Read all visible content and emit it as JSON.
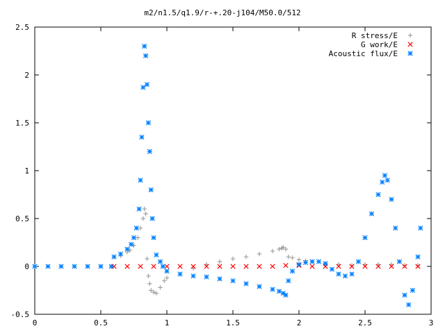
{
  "chart_data": {
    "type": "scatter",
    "title": "m2/n1.5/q1.9/r-+.20-j104/M50.0/512",
    "xlabel": "",
    "ylabel": "",
    "xlim": [
      0,
      3
    ],
    "ylim": [
      -0.5,
      2.5
    ],
    "x_ticks": [
      0,
      0.5,
      1,
      1.5,
      2,
      2.5,
      3
    ],
    "x_tick_labels": [
      "0",
      "0.5",
      "1",
      "1.5",
      "2",
      "2.5",
      "3"
    ],
    "y_ticks": [
      -0.5,
      0,
      0.5,
      1,
      1.5,
      2,
      2.5
    ],
    "y_tick_labels": [
      "-0.5",
      "0",
      "0.5",
      "1",
      "1.5",
      "2",
      "2.5"
    ],
    "grid": false,
    "legend_position": "top-right",
    "series": [
      {
        "name": "R stress/E",
        "marker": "plus",
        "color": "#a0a0a0",
        "x": [
          0.6,
          0.65,
          0.7,
          0.72,
          0.75,
          0.78,
          0.8,
          0.82,
          0.83,
          0.84,
          0.85,
          0.86,
          0.87,
          0.88,
          0.9,
          0.92,
          0.95,
          0.98,
          1.0,
          1.1,
          1.2,
          1.3,
          1.4,
          1.5,
          1.6,
          1.7,
          1.8,
          1.85,
          1.87,
          1.88,
          1.9,
          1.92,
          1.95,
          2.0,
          2.05,
          2.1,
          2.2,
          2.3,
          2.4,
          2.5,
          2.6,
          2.7,
          2.8,
          2.9
        ],
        "y": [
          0.1,
          0.11,
          0.15,
          0.17,
          0.22,
          0.3,
          0.4,
          0.5,
          0.6,
          0.55,
          0.08,
          -0.1,
          -0.18,
          -0.25,
          -0.27,
          -0.28,
          -0.22,
          -0.15,
          -0.12,
          -0.08,
          -0.02,
          0.02,
          0.05,
          0.08,
          0.1,
          0.13,
          0.16,
          0.18,
          0.19,
          0.2,
          0.18,
          0.1,
          0.09,
          0.07,
          0.06,
          0.05,
          0.03,
          0.02,
          0.01,
          0.02,
          0.02,
          0.02,
          0.01,
          0.01
        ]
      },
      {
        "name": "G work/E",
        "marker": "cross",
        "color": "#ff0000",
        "x": [
          0.6,
          0.7,
          0.8,
          0.9,
          1.0,
          1.1,
          1.2,
          1.3,
          1.4,
          1.5,
          1.6,
          1.7,
          1.8,
          1.9,
          2.0,
          2.1,
          2.2,
          2.3,
          2.4,
          2.5,
          2.6,
          2.7,
          2.8,
          2.9
        ],
        "y": [
          0,
          0,
          0,
          0,
          0,
          0,
          0,
          0,
          0,
          0,
          0,
          0,
          0,
          0.01,
          0.01,
          0,
          0,
          0,
          0,
          0,
          0,
          0,
          0,
          0
        ]
      },
      {
        "name": "Acoustic flux/E",
        "marker": "star",
        "color": "#0080ff",
        "x": [
          0.0,
          0.1,
          0.2,
          0.3,
          0.4,
          0.5,
          0.58,
          0.6,
          0.65,
          0.7,
          0.73,
          0.75,
          0.77,
          0.79,
          0.8,
          0.81,
          0.82,
          0.83,
          0.84,
          0.85,
          0.86,
          0.87,
          0.88,
          0.89,
          0.9,
          0.92,
          0.95,
          0.97,
          1.0,
          1.1,
          1.2,
          1.3,
          1.4,
          1.5,
          1.6,
          1.7,
          1.8,
          1.85,
          1.88,
          1.9,
          1.92,
          1.95,
          2.0,
          2.05,
          2.1,
          2.15,
          2.2,
          2.25,
          2.3,
          2.35,
          2.4,
          2.45,
          2.5,
          2.55,
          2.6,
          2.63,
          2.65,
          2.67,
          2.7,
          2.73,
          2.76,
          2.8,
          2.83,
          2.86,
          2.9,
          2.92
        ],
        "y": [
          0,
          0,
          0,
          0,
          0,
          0,
          0,
          0.1,
          0.13,
          0.18,
          0.23,
          0.3,
          0.4,
          0.6,
          0.9,
          1.35,
          1.87,
          2.3,
          2.2,
          1.9,
          1.5,
          1.2,
          0.8,
          0.5,
          0.3,
          0.12,
          0.05,
          0.0,
          -0.05,
          -0.08,
          -0.1,
          -0.11,
          -0.13,
          -0.15,
          -0.18,
          -0.21,
          -0.24,
          -0.26,
          -0.28,
          -0.3,
          -0.15,
          -0.05,
          0.02,
          0.04,
          0.05,
          0.05,
          0.03,
          -0.03,
          -0.08,
          -0.1,
          -0.08,
          0.05,
          0.3,
          0.55,
          0.75,
          0.88,
          0.95,
          0.9,
          0.7,
          0.4,
          0.05,
          -0.3,
          -0.4,
          -0.25,
          0.1,
          0.4
        ]
      }
    ]
  }
}
